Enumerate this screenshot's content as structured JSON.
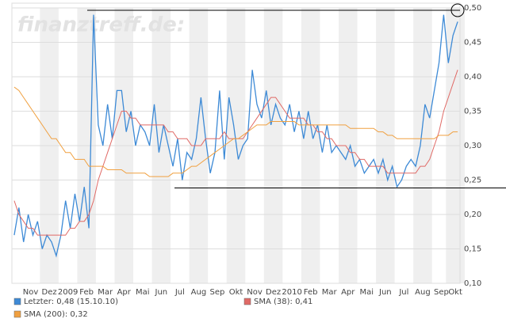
{
  "chart_data": {
    "type": "line",
    "watermark": "finanztreff.de:",
    "categories": [
      null,
      null,
      null,
      "Nov",
      null,
      null,
      null,
      "Dez",
      null,
      null,
      null,
      "2009",
      null,
      null,
      null,
      "Feb",
      null,
      null,
      null,
      "Mar",
      null,
      null,
      null,
      "Apr",
      null,
      null,
      null,
      "Mai",
      null,
      null,
      null,
      "Jun",
      null,
      null,
      null,
      "Jul",
      null,
      null,
      null,
      "Aug",
      null,
      null,
      null,
      "Sep",
      null,
      null,
      null,
      "Okt",
      null,
      null,
      null,
      "Nov",
      null,
      null,
      null,
      "Dez",
      null,
      null,
      null,
      "2010",
      null,
      null,
      null,
      "Feb",
      null,
      null,
      null,
      "Mar",
      null,
      null,
      null,
      "Apr",
      null,
      null,
      null,
      "Mai",
      null,
      null,
      null,
      "Jun",
      null,
      null,
      null,
      "Jul",
      null,
      null,
      null,
      "Aug",
      null,
      null,
      null,
      "Sep",
      null,
      null,
      "Okt",
      null
    ],
    "series": [
      {
        "name": "Letzter: 0,48 (15.10.10)",
        "color": "#3d8ad6",
        "values": [
          0.17,
          0.21,
          0.16,
          0.2,
          0.17,
          0.19,
          0.15,
          0.17,
          0.16,
          0.14,
          0.17,
          0.22,
          0.18,
          0.23,
          0.19,
          0.24,
          0.18,
          0.49,
          0.33,
          0.3,
          0.36,
          0.31,
          0.38,
          0.38,
          0.32,
          0.35,
          0.3,
          0.33,
          0.32,
          0.3,
          0.36,
          0.29,
          0.33,
          0.3,
          0.27,
          0.31,
          0.25,
          0.29,
          0.28,
          0.31,
          0.37,
          0.31,
          0.26,
          0.29,
          0.38,
          0.28,
          0.37,
          0.33,
          0.28,
          0.3,
          0.31,
          0.41,
          0.36,
          0.34,
          0.38,
          0.33,
          0.36,
          0.34,
          0.33,
          0.36,
          0.32,
          0.35,
          0.31,
          0.35,
          0.31,
          0.33,
          0.29,
          0.33,
          0.29,
          0.3,
          0.29,
          0.28,
          0.3,
          0.27,
          0.28,
          0.26,
          0.27,
          0.28,
          0.26,
          0.28,
          0.25,
          0.27,
          0.24,
          0.25,
          0.27,
          0.28,
          0.27,
          0.3,
          0.36,
          0.34,
          0.38,
          0.42,
          0.49,
          0.42,
          0.46,
          0.48
        ]
      },
      {
        "name": "SMA (38): 0,41",
        "color": "#e06a66",
        "values": [
          0.22,
          0.2,
          0.19,
          0.18,
          0.18,
          0.17,
          0.17,
          0.17,
          0.17,
          0.17,
          0.17,
          0.17,
          0.18,
          0.18,
          0.19,
          0.19,
          0.2,
          0.22,
          0.25,
          0.27,
          0.29,
          0.31,
          0.33,
          0.35,
          0.35,
          0.34,
          0.34,
          0.33,
          0.33,
          0.33,
          0.33,
          0.33,
          0.33,
          0.32,
          0.32,
          0.31,
          0.31,
          0.31,
          0.3,
          0.3,
          0.3,
          0.31,
          0.31,
          0.31,
          0.31,
          0.32,
          0.31,
          0.31,
          0.31,
          0.31,
          0.32,
          0.33,
          0.34,
          0.35,
          0.36,
          0.37,
          0.37,
          0.36,
          0.35,
          0.34,
          0.34,
          0.34,
          0.34,
          0.33,
          0.33,
          0.32,
          0.32,
          0.31,
          0.31,
          0.3,
          0.3,
          0.3,
          0.29,
          0.29,
          0.28,
          0.28,
          0.27,
          0.27,
          0.27,
          0.27,
          0.26,
          0.26,
          0.26,
          0.26,
          0.26,
          0.26,
          0.26,
          0.27,
          0.27,
          0.28,
          0.3,
          0.32,
          0.35,
          0.37,
          0.39,
          0.41
        ]
      },
      {
        "name": "SMA (200): 0,32",
        "color": "#f0a040",
        "values": [
          0.385,
          0.38,
          0.37,
          0.36,
          0.35,
          0.34,
          0.33,
          0.32,
          0.31,
          0.31,
          0.3,
          0.29,
          0.29,
          0.28,
          0.28,
          0.28,
          0.27,
          0.27,
          0.27,
          0.27,
          0.265,
          0.265,
          0.265,
          0.265,
          0.26,
          0.26,
          0.26,
          0.26,
          0.26,
          0.255,
          0.255,
          0.255,
          0.255,
          0.255,
          0.26,
          0.26,
          0.26,
          0.265,
          0.27,
          0.27,
          0.275,
          0.28,
          0.285,
          0.29,
          0.295,
          0.3,
          0.305,
          0.31,
          0.31,
          0.315,
          0.32,
          0.325,
          0.33,
          0.33,
          0.33,
          0.335,
          0.335,
          0.335,
          0.335,
          0.335,
          0.335,
          0.33,
          0.33,
          0.33,
          0.33,
          0.33,
          0.33,
          0.33,
          0.33,
          0.33,
          0.33,
          0.33,
          0.325,
          0.325,
          0.325,
          0.325,
          0.325,
          0.325,
          0.32,
          0.32,
          0.315,
          0.315,
          0.31,
          0.31,
          0.31,
          0.31,
          0.31,
          0.31,
          0.31,
          0.31,
          0.31,
          0.315,
          0.315,
          0.315,
          0.32,
          0.32
        ]
      }
    ],
    "ylim": [
      0.1,
      0.5
    ],
    "yticks": [
      {
        "value": 0.1,
        "label": "0,10"
      },
      {
        "value": 0.15,
        "label": "0,15"
      },
      {
        "value": 0.2,
        "label": "0,20"
      },
      {
        "value": 0.25,
        "label": "0,25"
      },
      {
        "value": 0.3,
        "label": "0,30"
      },
      {
        "value": 0.35,
        "label": "0,35"
      },
      {
        "value": 0.4,
        "label": "0,40"
      },
      {
        "value": 0.45,
        "label": "0,45"
      },
      {
        "value": 0.5,
        "label": "0,50"
      }
    ],
    "grid": true
  }
}
